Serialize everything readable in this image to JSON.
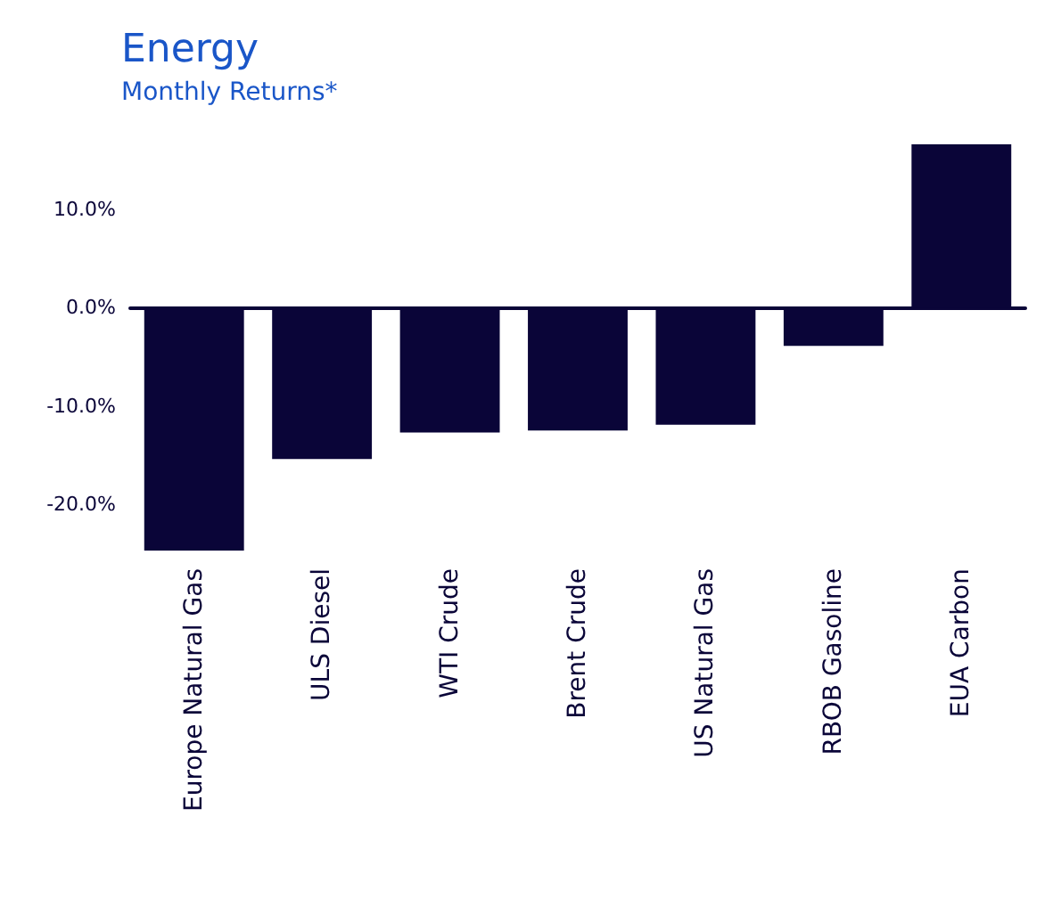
{
  "chart_data": {
    "type": "bar",
    "title": "Energy",
    "subtitle": "Monthly Returns*",
    "categories": [
      "Europe Natural Gas",
      "ULS Diesel",
      "WTI Crude",
      "Brent Crude",
      "US Natural Gas",
      "RBOB Gasoline",
      "EUA Carbon"
    ],
    "values": [
      -24.7,
      -15.4,
      -12.7,
      -12.5,
      -11.9,
      -3.9,
      16.6
    ],
    "color": "#0a0538",
    "ylim": [
      -24.7,
      16.6
    ],
    "yticks": [
      {
        "value": -20,
        "label": "-20.0%"
      },
      {
        "value": -10,
        "label": "-10.0%"
      },
      {
        "value": 0,
        "label": "0.0%"
      },
      {
        "value": 10,
        "label": "10.0%"
      }
    ],
    "grid": false
  }
}
